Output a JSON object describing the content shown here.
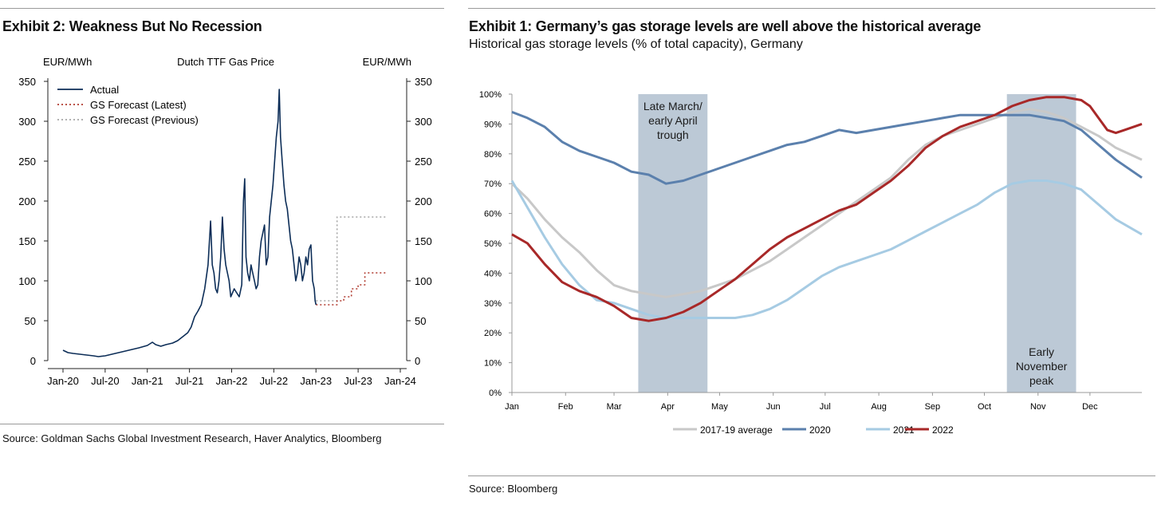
{
  "left": {
    "title": "Exhibit 2: Weakness But No Recession",
    "source": "Source: Goldman Sachs Global Investment Research, Haver Analytics, Bloomberg"
  },
  "right": {
    "title": "Exhibit 1: Germany’s gas storage levels are well above the historical average",
    "subtitle": "Historical gas storage levels (% of total capacity), Germany",
    "source": "Source: Bloomberg"
  },
  "chart_data": [
    {
      "type": "line",
      "title": "Dutch TTF Gas Price",
      "ylabel_left": "EUR/MWh",
      "ylabel_right": "EUR/MWh",
      "ylim": [
        0,
        350
      ],
      "yticks": [
        0,
        50,
        100,
        150,
        200,
        250,
        300,
        350
      ],
      "xlim": [
        2020.0,
        2024.0
      ],
      "xticks": [
        {
          "x": 2020.0,
          "label": "Jan-20"
        },
        {
          "x": 2020.5,
          "label": "Jul-20"
        },
        {
          "x": 2021.0,
          "label": "Jan-21"
        },
        {
          "x": 2021.5,
          "label": "Jul-21"
        },
        {
          "x": 2022.0,
          "label": "Jan-22"
        },
        {
          "x": 2022.5,
          "label": "Jul-22"
        },
        {
          "x": 2023.0,
          "label": "Jan-23"
        },
        {
          "x": 2023.5,
          "label": "Jul-23"
        },
        {
          "x": 2024.0,
          "label": "Jan-24"
        }
      ],
      "legend": [
        "Actual",
        "GS Forecast (Latest)",
        "GS Forecast (Previous)"
      ],
      "legend_position": "top-left",
      "colors": {
        "actual": "#0c2d57",
        "latest": "#b03a2e",
        "previous": "#a6a6a6"
      },
      "series": [
        {
          "name": "Actual",
          "x": [
            2020.0,
            2020.06,
            2020.12,
            2020.2,
            2020.28,
            2020.36,
            2020.42,
            2020.5,
            2020.58,
            2020.66,
            2020.74,
            2020.82,
            2020.9,
            2021.0,
            2021.06,
            2021.1,
            2021.16,
            2021.22,
            2021.3,
            2021.36,
            2021.42,
            2021.48,
            2021.52,
            2021.56,
            2021.6,
            2021.64,
            2021.68,
            2021.72,
            2021.75,
            2021.77,
            2021.79,
            2021.81,
            2021.83,
            2021.85,
            2021.87,
            2021.89,
            2021.91,
            2021.93,
            2021.95,
            2021.97,
            2021.99,
            2022.01,
            2022.03,
            2022.06,
            2022.09,
            2022.12,
            2022.14,
            2022.155,
            2022.17,
            2022.19,
            2022.21,
            2022.23,
            2022.25,
            2022.27,
            2022.29,
            2022.31,
            2022.33,
            2022.35,
            2022.37,
            2022.39,
            2022.41,
            2022.43,
            2022.45,
            2022.47,
            2022.49,
            2022.51,
            2022.53,
            2022.55,
            2022.565,
            2022.58,
            2022.6,
            2022.62,
            2022.64,
            2022.66,
            2022.68,
            2022.7,
            2022.72,
            2022.74,
            2022.76,
            2022.78,
            2022.8,
            2022.82,
            2022.84,
            2022.86,
            2022.88,
            2022.9,
            2022.92,
            2022.94,
            2022.96,
            2022.97,
            2022.98,
            2022.99,
            2023.0
          ],
          "values": [
            13,
            10,
            9,
            8,
            7,
            6,
            5,
            6,
            8,
            10,
            12,
            14,
            16,
            19,
            23,
            20,
            18,
            20,
            22,
            25,
            30,
            35,
            42,
            55,
            62,
            70,
            90,
            120,
            175,
            120,
            110,
            90,
            85,
            100,
            130,
            180,
            140,
            120,
            110,
            100,
            80,
            85,
            90,
            85,
            80,
            95,
            200,
            228,
            130,
            110,
            100,
            120,
            110,
            100,
            90,
            95,
            130,
            150,
            160,
            170,
            120,
            130,
            180,
            200,
            220,
            250,
            280,
            300,
            340,
            280,
            250,
            220,
            200,
            190,
            170,
            150,
            140,
            120,
            100,
            110,
            130,
            120,
            100,
            110,
            130,
            120,
            140,
            145,
            100,
            95,
            90,
            75,
            70
          ]
        },
        {
          "name": "GS Forecast (Latest)",
          "x": [
            2023.0,
            2023.25,
            2023.25,
            2023.33,
            2023.33,
            2023.42,
            2023.42,
            2023.5,
            2023.5,
            2023.58,
            2023.58,
            2023.67,
            2023.67,
            2023.83
          ],
          "values": [
            70,
            70,
            75,
            75,
            80,
            80,
            90,
            90,
            95,
            95,
            110,
            110,
            110,
            110
          ]
        },
        {
          "name": "GS Forecast (Previous)",
          "x": [
            2023.0,
            2023.0,
            2023.25,
            2023.25,
            2023.83
          ],
          "values": [
            70,
            75,
            75,
            180,
            180
          ]
        }
      ]
    },
    {
      "type": "line",
      "title": "Historical gas storage levels (% of total capacity), Germany",
      "ylim": [
        0,
        100
      ],
      "yticks": [
        0,
        10,
        20,
        30,
        40,
        50,
        60,
        70,
        80,
        90,
        100
      ],
      "ytick_labels": [
        "0%",
        "10%",
        "20%",
        "30%",
        "40%",
        "50%",
        "60%",
        "70%",
        "80%",
        "90%",
        "100%"
      ],
      "xlim": [
        1,
        365
      ],
      "xticks": [
        {
          "x": 1,
          "label": "Jan"
        },
        {
          "x": 32,
          "label": "Feb"
        },
        {
          "x": 60,
          "label": "Mar"
        },
        {
          "x": 91,
          "label": "Apr"
        },
        {
          "x": 121,
          "label": "May"
        },
        {
          "x": 152,
          "label": "Jun"
        },
        {
          "x": 182,
          "label": "Jul"
        },
        {
          "x": 213,
          "label": "Aug"
        },
        {
          "x": 244,
          "label": "Sep"
        },
        {
          "x": 274,
          "label": "Oct"
        },
        {
          "x": 305,
          "label": "Nov"
        },
        {
          "x": 335,
          "label": "Dec"
        }
      ],
      "shaded_regions": [
        {
          "from": 74,
          "to": 114,
          "label_lines": [
            "Late March/",
            "early April",
            "trough"
          ],
          "label_anchor": "top"
        },
        {
          "from": 287,
          "to": 327,
          "label_lines": [
            "Early",
            "November",
            "peak"
          ],
          "label_anchor": "bottom"
        }
      ],
      "legend_position": "bottom",
      "series": [
        {
          "name": "2017-19 average",
          "color": "#c8c8c8",
          "x": [
            1,
            10,
            20,
            30,
            40,
            50,
            60,
            70,
            80,
            90,
            100,
            110,
            120,
            130,
            140,
            150,
            160,
            170,
            180,
            190,
            200,
            210,
            220,
            230,
            240,
            250,
            260,
            270,
            280,
            290,
            300,
            310,
            320,
            330,
            340,
            350,
            365
          ],
          "values": [
            70,
            65,
            58,
            52,
            47,
            41,
            36,
            34,
            33,
            32,
            33,
            34,
            36,
            38,
            41,
            44,
            48,
            52,
            56,
            60,
            64,
            68,
            72,
            78,
            83,
            86,
            88,
            90,
            92,
            94,
            95,
            94,
            92,
            89,
            86,
            82,
            78
          ]
        },
        {
          "name": "2020",
          "color": "#5b80ad",
          "x": [
            1,
            10,
            20,
            30,
            40,
            50,
            60,
            70,
            80,
            90,
            100,
            110,
            120,
            130,
            140,
            150,
            160,
            170,
            180,
            190,
            200,
            210,
            220,
            230,
            240,
            250,
            260,
            270,
            280,
            290,
            300,
            310,
            320,
            330,
            340,
            350,
            365
          ],
          "values": [
            94,
            92,
            89,
            84,
            81,
            79,
            77,
            74,
            73,
            70,
            71,
            73,
            75,
            77,
            79,
            81,
            83,
            84,
            86,
            88,
            87,
            88,
            89,
            90,
            91,
            92,
            93,
            93,
            93,
            93,
            93,
            92,
            91,
            88,
            83,
            78,
            72
          ]
        },
        {
          "name": "2021",
          "color": "#a6cbe3",
          "x": [
            1,
            10,
            20,
            30,
            40,
            50,
            60,
            70,
            80,
            90,
            100,
            110,
            120,
            130,
            140,
            150,
            160,
            170,
            180,
            190,
            200,
            210,
            220,
            230,
            240,
            250,
            260,
            270,
            280,
            290,
            300,
            310,
            320,
            330,
            340,
            350,
            365
          ],
          "values": [
            71,
            62,
            52,
            43,
            36,
            31,
            30,
            28,
            26,
            25,
            25,
            25,
            25,
            25,
            26,
            28,
            31,
            35,
            39,
            42,
            44,
            46,
            48,
            51,
            54,
            57,
            60,
            63,
            67,
            70,
            71,
            71,
            70,
            68,
            63,
            58,
            53
          ]
        },
        {
          "name": "2022",
          "color": "#a82828",
          "x": [
            1,
            10,
            20,
            30,
            40,
            50,
            60,
            70,
            80,
            90,
            100,
            110,
            120,
            130,
            140,
            150,
            160,
            170,
            180,
            190,
            200,
            210,
            220,
            230,
            240,
            250,
            260,
            270,
            280,
            290,
            300,
            310,
            320,
            330,
            335,
            340,
            345,
            350,
            355,
            365
          ],
          "values": [
            53,
            50,
            43,
            37,
            34,
            32,
            29,
            25,
            24,
            25,
            27,
            30,
            34,
            38,
            43,
            48,
            52,
            55,
            58,
            61,
            63,
            67,
            71,
            76,
            82,
            86,
            89,
            91,
            93,
            96,
            98,
            99,
            99,
            98,
            96,
            92,
            88,
            87,
            88,
            90
          ]
        }
      ]
    }
  ]
}
